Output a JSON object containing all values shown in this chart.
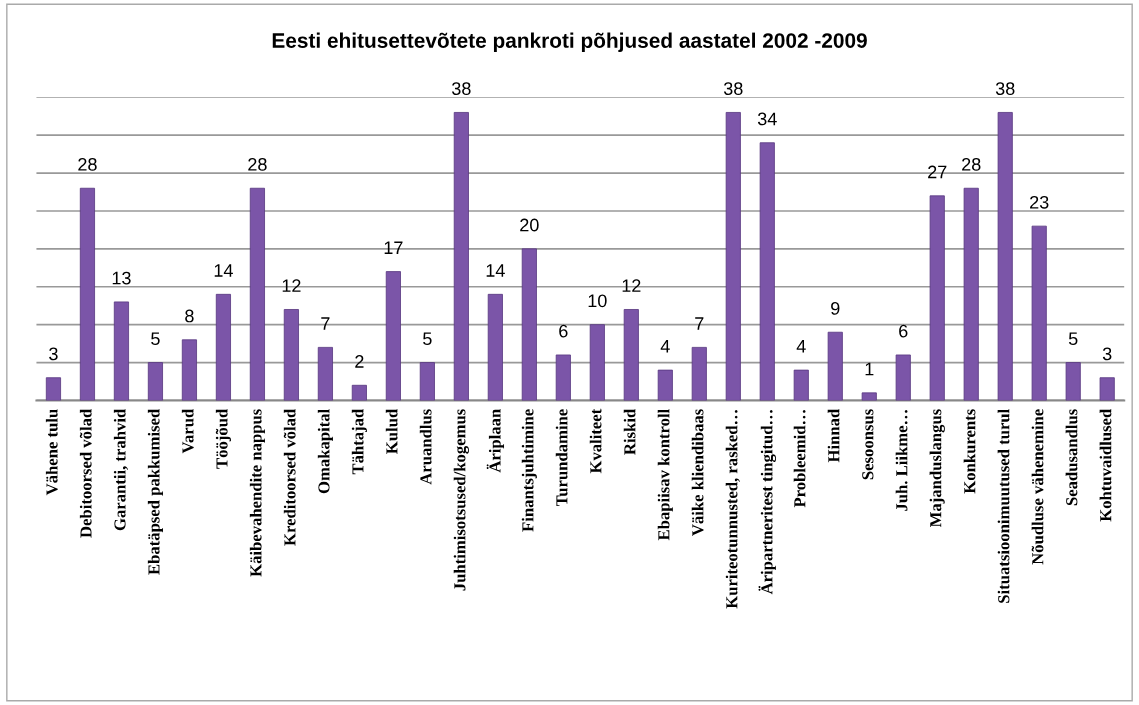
{
  "chart_data": {
    "type": "bar",
    "title": "Eesti ehitusettevõtete pankroti põhjused aastatel 2002 -2009",
    "categories": [
      "Vähene tulu",
      "Debitoorsed võlad",
      "Garantii, trahvid",
      "Ebatäpsed pakkumised",
      "Varud",
      "Tööjõud",
      "Käibevahendite nappus",
      "Kreditoorsed võlad",
      "Omakapital",
      "Tähtajad",
      "Kulud",
      "Aruandlus",
      "Juhtimisotsused/kogemus",
      "Äriplaan",
      "Finantsjuhtimine",
      "Turundamine",
      "Kvaliteet",
      "Riskid",
      "Ebapiisav kontroll",
      "Väike kliendibaas",
      "Kuriteotunnusted, rasked…",
      "Äripartneritest tingitud…",
      "Probleemid…",
      "Hinnad",
      "Sesoonsus",
      "Juh. Liikme…",
      "Majanduslangus",
      "Konkurents",
      "Situatsioonimuutused turul",
      "Nõudluse vähenemine",
      "Seadusandlus",
      "Kohtuvaidlused"
    ],
    "values": [
      3,
      28,
      13,
      5,
      8,
      14,
      28,
      12,
      7,
      2,
      17,
      5,
      38,
      14,
      20,
      6,
      10,
      12,
      4,
      7,
      38,
      34,
      4,
      9,
      1,
      6,
      27,
      28,
      38,
      23,
      5,
      3
    ],
    "color": "#7b55a8",
    "ylim": [
      0,
      40
    ],
    "yticks": [
      {
        "value": 0,
        "label": null
      },
      {
        "value": 5,
        "label": null
      },
      {
        "value": 10,
        "label": null
      },
      {
        "value": 15,
        "label": null
      },
      {
        "value": 20,
        "label": null
      },
      {
        "value": 25,
        "label": null
      },
      {
        "value": 30,
        "label": null
      },
      {
        "value": 35,
        "label": null
      },
      {
        "value": 40,
        "label": null
      }
    ],
    "grid": "y",
    "tick_labels": "x",
    "data_labels": true
  }
}
